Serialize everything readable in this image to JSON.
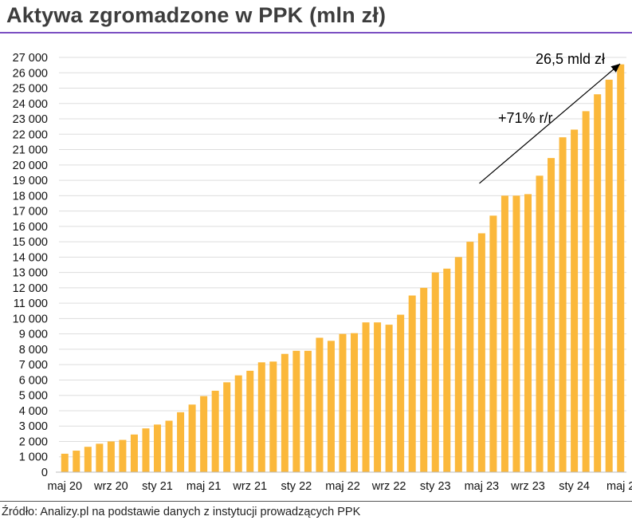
{
  "title": "Aktywa zgromadzone w PPK (mln zł)",
  "source": "Źródło: Analizy.pl na podstawie danych z instytucji prowadzących PPK",
  "colors": {
    "bar": "#fbb83b",
    "title_rule": "#7b4fc2",
    "grid": "#dddddd"
  },
  "chart_data": {
    "type": "bar",
    "title": "Aktywa zgromadzone w PPK (mln zł)",
    "xlabel": "",
    "ylabel": "",
    "ylim": [
      0,
      27000
    ],
    "yticks": [
      0,
      1000,
      2000,
      3000,
      4000,
      5000,
      6000,
      7000,
      8000,
      9000,
      10000,
      11000,
      12000,
      13000,
      14000,
      15000,
      16000,
      17000,
      18000,
      19000,
      20000,
      21000,
      22000,
      23000,
      24000,
      25000,
      26000,
      27000
    ],
    "ytick_labels": [
      "0",
      "1 000",
      "2 000",
      "3 000",
      "4 000",
      "5 000",
      "6 000",
      "7 000",
      "8 000",
      "9 000",
      "10 000",
      "11 000",
      "12 000",
      "13 000",
      "14 000",
      "15 000",
      "16 000",
      "17 000",
      "18 000",
      "19 000",
      "20 000",
      "21 000",
      "22 000",
      "23 000",
      "24 000",
      "25 000",
      "26 000",
      "27 000"
    ],
    "xtick_labels": [
      {
        "index": 0,
        "label": "maj 20"
      },
      {
        "index": 4,
        "label": "wrz 20"
      },
      {
        "index": 8,
        "label": "sty 21"
      },
      {
        "index": 12,
        "label": "maj 21"
      },
      {
        "index": 16,
        "label": "wrz 21"
      },
      {
        "index": 20,
        "label": "sty 22"
      },
      {
        "index": 24,
        "label": "maj 22"
      },
      {
        "index": 28,
        "label": "wrz 22"
      },
      {
        "index": 32,
        "label": "sty 23"
      },
      {
        "index": 36,
        "label": "maj 23"
      },
      {
        "index": 40,
        "label": "wrz 23"
      },
      {
        "index": 44,
        "label": "sty 24"
      },
      {
        "index": 48,
        "label": "maj 2"
      }
    ],
    "grid": true,
    "values": [
      1200,
      1400,
      1650,
      1850,
      2000,
      2100,
      2450,
      2850,
      3100,
      3350,
      3900,
      4400,
      4950,
      5300,
      5850,
      6300,
      6600,
      7150,
      7200,
      7700,
      7900,
      7900,
      8750,
      8550,
      9000,
      9050,
      9750,
      9750,
      9600,
      10250,
      11500,
      12000,
      13000,
      13250,
      14000,
      15000,
      15550,
      16700,
      18000,
      18000,
      18100,
      19300,
      20450,
      21800,
      22300,
      23500,
      24600,
      25550,
      26550
    ],
    "annotations": [
      {
        "text": "26,5 mld zł",
        "at_index": 48,
        "at_value": 26500
      },
      {
        "text": "+71% r/r"
      }
    ],
    "trend_arrow": {
      "from": {
        "index": 36,
        "value": 18800
      },
      "to": {
        "index": 48,
        "value": 27000
      }
    }
  }
}
